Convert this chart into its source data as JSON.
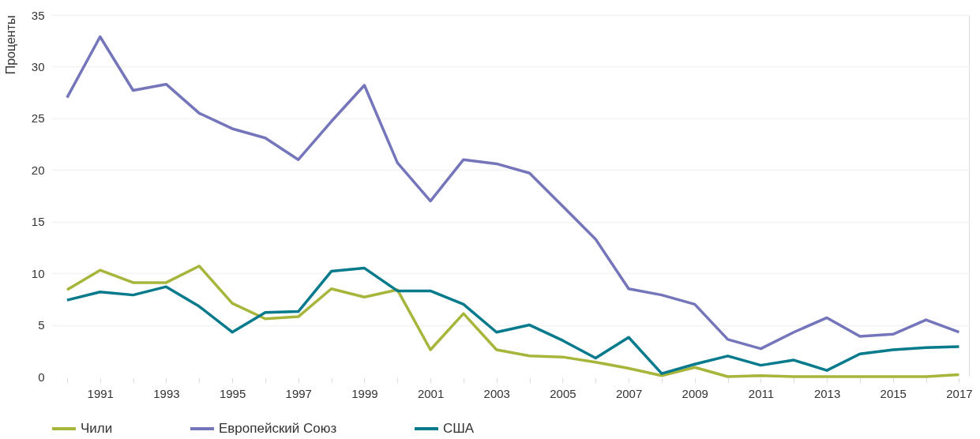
{
  "chart_data": {
    "type": "line",
    "ylabel": "Проценты",
    "x": [
      1990,
      1991,
      1992,
      1993,
      1994,
      1995,
      1996,
      1997,
      1998,
      1999,
      2000,
      2001,
      2002,
      2003,
      2004,
      2005,
      2006,
      2007,
      2008,
      2009,
      2010,
      2011,
      2012,
      2013,
      2014,
      2015,
      2016,
      2017
    ],
    "series": [
      {
        "name": "Чили",
        "color": "#a8b53b",
        "values": [
          8.4,
          10.3,
          9.1,
          9.1,
          10.7,
          7.1,
          5.6,
          5.8,
          8.5,
          7.7,
          8.4,
          2.6,
          6.1,
          2.6,
          2.0,
          1.9,
          1.4,
          0.8,
          0.1,
          0.9,
          0.0,
          0.1,
          0.0,
          0.0,
          0.0,
          0.0,
          0.0,
          0.2
        ]
      },
      {
        "name": "Европейский Союз",
        "color": "#7475bb",
        "values": [
          27.0,
          32.9,
          27.7,
          28.3,
          25.5,
          24.0,
          23.1,
          21.0,
          24.7,
          28.2,
          20.7,
          17.0,
          21.0,
          20.6,
          19.7,
          16.5,
          13.3,
          8.5,
          7.9,
          7.0,
          3.6,
          2.7,
          4.3,
          5.7,
          3.9,
          4.1,
          5.5,
          4.3
        ]
      },
      {
        "name": "США",
        "color": "#047a8c",
        "values": [
          7.4,
          8.2,
          7.9,
          8.7,
          6.8,
          4.3,
          6.2,
          6.3,
          10.2,
          10.5,
          8.3,
          8.3,
          7.0,
          4.3,
          5.0,
          3.5,
          1.8,
          3.8,
          0.3,
          1.2,
          2.0,
          1.1,
          1.6,
          0.6,
          2.2,
          2.6,
          2.8,
          2.9
        ]
      }
    ],
    "xlim": [
      1989.5,
      2017.3
    ],
    "xticks": [
      {
        "value": 1990,
        "label": null
      },
      1991,
      {
        "value": 1992,
        "label": null
      },
      1993,
      {
        "value": 1994,
        "label": null
      },
      1995,
      {
        "value": 1996,
        "label": null
      },
      1997,
      {
        "value": 1998,
        "label": null
      },
      1999,
      {
        "value": 2000,
        "label": null
      },
      2001,
      {
        "value": 2002,
        "label": null
      },
      2003,
      {
        "value": 2004,
        "label": null
      },
      2005,
      {
        "value": 2006,
        "label": null
      },
      2007,
      {
        "value": 2008,
        "label": null
      },
      2009,
      {
        "value": 2010,
        "label": null
      },
      2011,
      {
        "value": 2012,
        "label": null
      },
      2013,
      {
        "value": 2014,
        "label": null
      },
      2015,
      {
        "value": 2016,
        "label": null
      },
      2017
    ],
    "ylim": [
      0,
      35
    ],
    "yticks": [
      0,
      5,
      10,
      15,
      20,
      25,
      30,
      35
    ],
    "grid": "y",
    "legend": "bottom",
    "marker": "none",
    "line_style": "solid"
  }
}
